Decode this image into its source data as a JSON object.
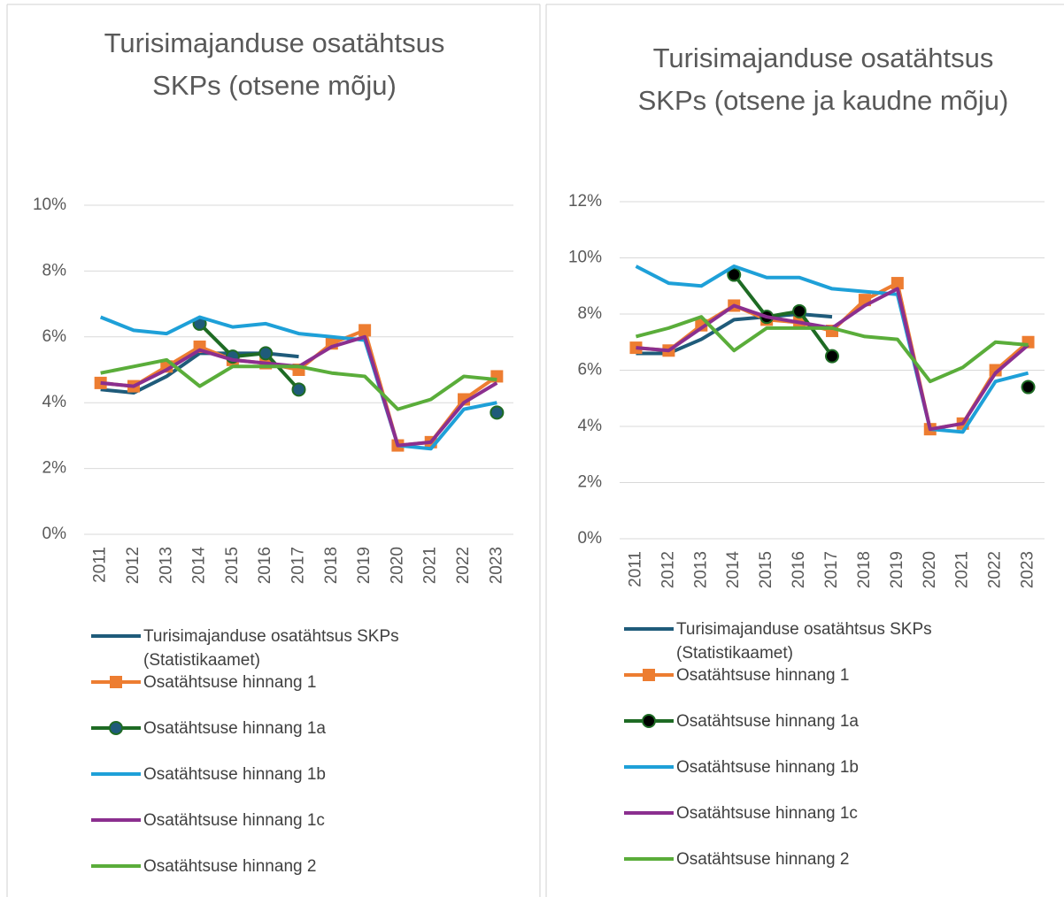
{
  "chart_data": [
    {
      "type": "line",
      "title": "Turisimajanduse osatähtsus SKPs (otsene mõju)",
      "categories": [
        "2011",
        "2012",
        "2013",
        "2014",
        "2015",
        "2016",
        "2017",
        "2018",
        "2019",
        "2020",
        "2021",
        "2022",
        "2023"
      ],
      "ylim": [
        0,
        10
      ],
      "yticks": [
        {
          "value": 0,
          "label": "0%"
        },
        {
          "value": 2,
          "label": "2%"
        },
        {
          "value": 4,
          "label": "4%"
        },
        {
          "value": 6,
          "label": "6%"
        },
        {
          "value": 8,
          "label": "8%"
        },
        {
          "value": 10,
          "label": "10%"
        }
      ],
      "grid": true,
      "series": [
        {
          "name": "Turisimajanduse osatähtsus SKPs (Statistikaamet)",
          "color": "#1f5b7a",
          "values": [
            4.4,
            4.3,
            4.8,
            5.5,
            5.5,
            5.5,
            5.4,
            null,
            null,
            null,
            null,
            null,
            null
          ]
        },
        {
          "name": "Osatähtsuse hinnang 1",
          "color": "#ed7d31",
          "marker": "square",
          "marker_color": "#ed7d31",
          "values": [
            4.6,
            4.5,
            5.1,
            5.7,
            5.3,
            5.2,
            5.0,
            5.8,
            6.2,
            2.7,
            2.8,
            4.1,
            4.8
          ]
        },
        {
          "name": "Osatähtsuse hinnang 1a",
          "color": "#1e6b24",
          "marker": "circle",
          "marker_color": "#1f5b7a",
          "values": [
            null,
            null,
            null,
            6.4,
            5.4,
            5.5,
            4.4,
            null,
            null,
            null,
            null,
            null,
            3.7
          ]
        },
        {
          "name": "Osatähtsuse hinnang 1b",
          "color": "#1ea0d8",
          "values": [
            6.6,
            6.2,
            6.1,
            6.6,
            6.3,
            6.4,
            6.1,
            6.0,
            5.9,
            2.7,
            2.6,
            3.8,
            4.0
          ]
        },
        {
          "name": "Osatähtsuse hinnang 1c",
          "color": "#8b2f8f",
          "values": [
            4.6,
            4.5,
            5.0,
            5.6,
            5.3,
            5.2,
            5.1,
            5.7,
            6.0,
            2.7,
            2.8,
            4.0,
            4.6
          ]
        },
        {
          "name": "Osatähtsuse hinnang 2",
          "color": "#5aad3a",
          "values": [
            4.9,
            5.1,
            5.3,
            4.5,
            5.1,
            5.1,
            5.1,
            4.9,
            4.8,
            3.8,
            4.1,
            4.8,
            4.7
          ]
        }
      ]
    },
    {
      "type": "line",
      "title": "Turisimajanduse osatähtsus SKPs (otsene ja kaudne mõju)",
      "categories": [
        "2011",
        "2012",
        "2013",
        "2014",
        "2015",
        "2016",
        "2017",
        "2018",
        "2019",
        "2020",
        "2021",
        "2022",
        "2023"
      ],
      "ylim": [
        0,
        12
      ],
      "yticks": [
        {
          "value": 0,
          "label": "0%"
        },
        {
          "value": 2,
          "label": "2%"
        },
        {
          "value": 4,
          "label": "4%"
        },
        {
          "value": 6,
          "label": "6%"
        },
        {
          "value": 8,
          "label": "8%"
        },
        {
          "value": 10,
          "label": "10%"
        },
        {
          "value": 12,
          "label": "12%"
        }
      ],
      "grid": true,
      "series": [
        {
          "name": "Turisimajanduse osatähtsus SKPs (Statistikaamet)",
          "color": "#1f5b7a",
          "values": [
            6.6,
            6.6,
            7.1,
            7.8,
            7.9,
            8.0,
            7.9,
            null,
            null,
            null,
            null,
            null,
            null
          ]
        },
        {
          "name": "Osatähtsuse hinnang 1",
          "color": "#ed7d31",
          "marker": "square",
          "marker_color": "#ed7d31",
          "values": [
            6.8,
            6.7,
            7.6,
            8.3,
            7.8,
            7.7,
            7.4,
            8.5,
            9.1,
            3.9,
            4.1,
            6.0,
            7.0
          ]
        },
        {
          "name": "Osatähtsuse hinnang 1a",
          "color": "#1e6b24",
          "marker": "circle",
          "marker_color": "#000000",
          "values": [
            null,
            null,
            null,
            9.4,
            7.9,
            8.1,
            6.5,
            null,
            null,
            null,
            null,
            null,
            5.4
          ]
        },
        {
          "name": "Osatähtsuse hinnang 1b",
          "color": "#1ea0d8",
          "values": [
            9.7,
            9.1,
            9.0,
            9.7,
            9.3,
            9.3,
            8.9,
            8.8,
            8.7,
            3.9,
            3.8,
            5.6,
            5.9
          ]
        },
        {
          "name": "Osatähtsuse hinnang 1c",
          "color": "#8b2f8f",
          "values": [
            6.8,
            6.7,
            7.5,
            8.3,
            7.9,
            7.7,
            7.5,
            8.3,
            8.9,
            3.9,
            4.1,
            5.9,
            6.9
          ]
        },
        {
          "name": "Osatähtsuse hinnang 2",
          "color": "#5aad3a",
          "values": [
            7.2,
            7.5,
            7.9,
            6.7,
            7.5,
            7.5,
            7.5,
            7.2,
            7.1,
            5.6,
            6.1,
            7.0,
            6.9
          ]
        }
      ]
    }
  ]
}
